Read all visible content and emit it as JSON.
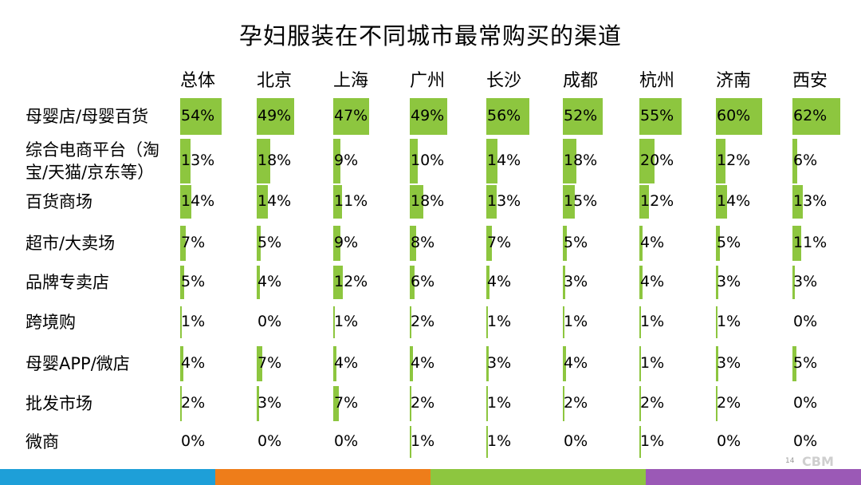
{
  "chart_data": {
    "type": "table",
    "title": "孕妇服装在不同城市最常购买的渠道",
    "columns": [
      "总体",
      "北京",
      "上海",
      "广州",
      "长沙",
      "成都",
      "杭州",
      "济南",
      "西安"
    ],
    "rows": [
      {
        "label": [
          "母婴店/母婴百货"
        ],
        "values": [
          54,
          49,
          47,
          49,
          56,
          52,
          55,
          60,
          62
        ]
      },
      {
        "label": [
          "综合电商平台（淘",
          "宝/天猫/京东等）"
        ],
        "values": [
          13,
          18,
          9,
          10,
          14,
          18,
          20,
          12,
          6
        ]
      },
      {
        "label": [
          "百货商场"
        ],
        "values": [
          14,
          14,
          11,
          18,
          13,
          15,
          12,
          14,
          13
        ]
      },
      {
        "label": [
          "超市/大卖场"
        ],
        "values": [
          7,
          5,
          9,
          8,
          7,
          5,
          4,
          5,
          11
        ]
      },
      {
        "label": [
          "品牌专卖店"
        ],
        "values": [
          5,
          4,
          12,
          6,
          4,
          3,
          4,
          3,
          3
        ]
      },
      {
        "label": [
          "跨境购"
        ],
        "values": [
          1,
          0,
          1,
          2,
          1,
          1,
          1,
          1,
          0
        ]
      },
      {
        "label": [
          "母婴APP/微店"
        ],
        "values": [
          4,
          7,
          4,
          4,
          3,
          4,
          1,
          3,
          5
        ]
      },
      {
        "label": [
          "批发市场"
        ],
        "values": [
          2,
          3,
          7,
          2,
          1,
          2,
          2,
          2,
          0
        ]
      },
      {
        "label": [
          "微商"
        ],
        "values": [
          0,
          0,
          0,
          1,
          1,
          0,
          1,
          0,
          0
        ]
      }
    ],
    "value_suffix": "%",
    "bar_color": "#8dc63f",
    "footer_colors": [
      "#1e9fd8",
      "#ee7d1a",
      "#8dc63f",
      "#9b59b6"
    ]
  },
  "page_number": "14",
  "logo": "CBM"
}
